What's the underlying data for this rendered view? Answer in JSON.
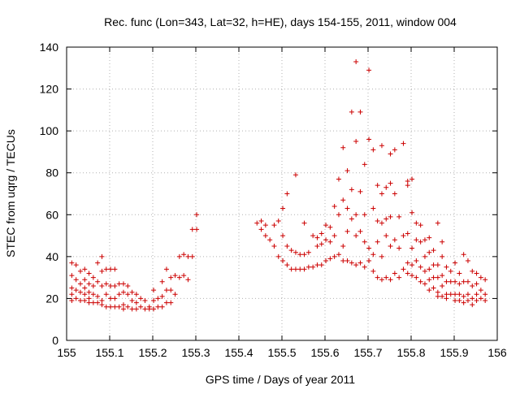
{
  "chart_data": {
    "type": "scatter",
    "title": "Rec. func (Lon=343, Lat=32, h=HE), days 154-155, 2011, window 004",
    "xlabel": "GPS time / Days of year 2011",
    "ylabel": "STEC from uqrg / TECUs",
    "xlim": [
      155,
      156
    ],
    "ylim": [
      0,
      140
    ],
    "xticks": [
      "155",
      "155.1",
      "155.2",
      "155.3",
      "155.4",
      "155.5",
      "155.6",
      "155.7",
      "155.8",
      "155.9",
      "156"
    ],
    "yticks": [
      "0",
      "20",
      "40",
      "60",
      "80",
      "100",
      "120",
      "140"
    ],
    "grid": true,
    "marker": "+",
    "color": "#cc0000",
    "series": [
      {
        "name": "STEC",
        "points": [
          [
            155.012,
            37
          ],
          [
            155.012,
            31
          ],
          [
            155.012,
            25
          ],
          [
            155.012,
            22
          ],
          [
            155.012,
            19
          ],
          [
            155.022,
            36
          ],
          [
            155.022,
            29
          ],
          [
            155.022,
            24
          ],
          [
            155.022,
            20
          ],
          [
            155.032,
            33
          ],
          [
            155.032,
            27
          ],
          [
            155.032,
            23
          ],
          [
            155.032,
            19
          ],
          [
            155.042,
            34
          ],
          [
            155.042,
            29
          ],
          [
            155.042,
            25
          ],
          [
            155.042,
            22
          ],
          [
            155.042,
            19
          ],
          [
            155.052,
            32
          ],
          [
            155.052,
            27
          ],
          [
            155.052,
            23
          ],
          [
            155.052,
            20
          ],
          [
            155.052,
            18
          ],
          [
            155.062,
            30
          ],
          [
            155.062,
            26
          ],
          [
            155.062,
            22
          ],
          [
            155.062,
            18
          ],
          [
            155.072,
            37
          ],
          [
            155.072,
            28
          ],
          [
            155.072,
            21
          ],
          [
            155.072,
            18
          ],
          [
            155.082,
            40
          ],
          [
            155.082,
            33
          ],
          [
            155.082,
            26
          ],
          [
            155.082,
            19
          ],
          [
            155.082,
            17
          ],
          [
            155.092,
            34
          ],
          [
            155.092,
            27
          ],
          [
            155.092,
            22
          ],
          [
            155.092,
            16
          ],
          [
            155.102,
            34
          ],
          [
            155.102,
            26
          ],
          [
            155.102,
            20
          ],
          [
            155.102,
            16
          ],
          [
            155.112,
            34
          ],
          [
            155.112,
            26
          ],
          [
            155.112,
            20
          ],
          [
            155.112,
            16
          ],
          [
            155.122,
            27
          ],
          [
            155.122,
            22
          ],
          [
            155.122,
            16
          ],
          [
            155.132,
            27
          ],
          [
            155.132,
            23
          ],
          [
            155.132,
            17
          ],
          [
            155.132,
            15
          ],
          [
            155.142,
            26
          ],
          [
            155.142,
            22
          ],
          [
            155.142,
            16
          ],
          [
            155.152,
            23
          ],
          [
            155.152,
            19
          ],
          [
            155.152,
            15
          ],
          [
            155.162,
            22
          ],
          [
            155.162,
            18
          ],
          [
            155.162,
            15
          ],
          [
            155.172,
            20
          ],
          [
            155.172,
            16
          ],
          [
            155.182,
            19
          ],
          [
            155.182,
            15
          ],
          [
            155.192,
            16
          ],
          [
            155.192,
            15
          ],
          [
            155.202,
            24
          ],
          [
            155.202,
            19
          ],
          [
            155.202,
            15
          ],
          [
            155.212,
            20
          ],
          [
            155.212,
            16
          ],
          [
            155.222,
            28
          ],
          [
            155.222,
            21
          ],
          [
            155.222,
            16
          ],
          [
            155.232,
            34
          ],
          [
            155.232,
            24
          ],
          [
            155.232,
            18
          ],
          [
            155.242,
            30
          ],
          [
            155.242,
            24
          ],
          [
            155.242,
            18
          ],
          [
            155.252,
            31
          ],
          [
            155.252,
            22
          ],
          [
            155.262,
            40
          ],
          [
            155.262,
            30
          ],
          [
            155.272,
            41
          ],
          [
            155.272,
            31
          ],
          [
            155.282,
            40
          ],
          [
            155.282,
            29
          ],
          [
            155.292,
            53
          ],
          [
            155.292,
            40
          ],
          [
            155.302,
            60
          ],
          [
            155.302,
            53
          ],
          [
            155.442,
            56
          ],
          [
            155.452,
            57
          ],
          [
            155.452,
            53
          ],
          [
            155.462,
            55
          ],
          [
            155.462,
            50
          ],
          [
            155.472,
            48
          ],
          [
            155.482,
            55
          ],
          [
            155.482,
            45
          ],
          [
            155.492,
            57
          ],
          [
            155.492,
            40
          ],
          [
            155.502,
            63
          ],
          [
            155.502,
            50
          ],
          [
            155.502,
            38
          ],
          [
            155.512,
            70
          ],
          [
            155.512,
            45
          ],
          [
            155.512,
            36
          ],
          [
            155.522,
            43
          ],
          [
            155.522,
            34
          ],
          [
            155.532,
            79
          ],
          [
            155.532,
            42
          ],
          [
            155.532,
            34
          ],
          [
            155.542,
            41
          ],
          [
            155.542,
            34
          ],
          [
            155.552,
            56
          ],
          [
            155.552,
            41
          ],
          [
            155.552,
            34
          ],
          [
            155.562,
            42
          ],
          [
            155.562,
            35
          ],
          [
            155.572,
            50
          ],
          [
            155.572,
            35
          ],
          [
            155.582,
            49
          ],
          [
            155.582,
            45
          ],
          [
            155.582,
            36
          ],
          [
            155.592,
            51
          ],
          [
            155.592,
            46
          ],
          [
            155.592,
            36
          ],
          [
            155.602,
            55
          ],
          [
            155.602,
            48
          ],
          [
            155.602,
            38
          ],
          [
            155.612,
            54
          ],
          [
            155.612,
            47
          ],
          [
            155.612,
            39
          ],
          [
            155.622,
            64
          ],
          [
            155.622,
            50
          ],
          [
            155.622,
            40
          ],
          [
            155.632,
            77
          ],
          [
            155.632,
            60
          ],
          [
            155.632,
            41
          ],
          [
            155.642,
            92
          ],
          [
            155.642,
            67
          ],
          [
            155.642,
            45
          ],
          [
            155.642,
            38
          ],
          [
            155.652,
            81
          ],
          [
            155.652,
            63
          ],
          [
            155.652,
            52
          ],
          [
            155.652,
            38
          ],
          [
            155.662,
            109
          ],
          [
            155.662,
            72
          ],
          [
            155.662,
            58
          ],
          [
            155.662,
            37
          ],
          [
            155.672,
            133
          ],
          [
            155.672,
            95
          ],
          [
            155.672,
            60
          ],
          [
            155.672,
            50
          ],
          [
            155.672,
            36
          ],
          [
            155.682,
            109
          ],
          [
            155.682,
            71
          ],
          [
            155.682,
            52
          ],
          [
            155.682,
            37
          ],
          [
            155.692,
            84
          ],
          [
            155.692,
            60
          ],
          [
            155.692,
            47
          ],
          [
            155.692,
            35
          ],
          [
            155.702,
            129
          ],
          [
            155.702,
            96
          ],
          [
            155.702,
            44
          ],
          [
            155.702,
            38
          ],
          [
            155.712,
            91
          ],
          [
            155.712,
            63
          ],
          [
            155.712,
            41
          ],
          [
            155.712,
            33
          ],
          [
            155.722,
            74
          ],
          [
            155.722,
            57
          ],
          [
            155.722,
            47
          ],
          [
            155.722,
            30
          ],
          [
            155.732,
            93
          ],
          [
            155.732,
            70
          ],
          [
            155.732,
            56
          ],
          [
            155.732,
            40
          ],
          [
            155.732,
            29
          ],
          [
            155.742,
            73
          ],
          [
            155.742,
            58
          ],
          [
            155.742,
            50
          ],
          [
            155.742,
            30
          ],
          [
            155.752,
            89
          ],
          [
            155.752,
            75
          ],
          [
            155.752,
            59
          ],
          [
            155.752,
            45
          ],
          [
            155.752,
            29
          ],
          [
            155.762,
            91
          ],
          [
            155.762,
            70
          ],
          [
            155.762,
            48
          ],
          [
            155.762,
            32
          ],
          [
            155.772,
            59
          ],
          [
            155.772,
            44
          ],
          [
            155.772,
            30
          ],
          [
            155.782,
            94
          ],
          [
            155.782,
            50
          ],
          [
            155.782,
            34
          ],
          [
            155.792,
            76
          ],
          [
            155.792,
            74
          ],
          [
            155.792,
            51
          ],
          [
            155.792,
            37
          ],
          [
            155.792,
            32
          ],
          [
            155.802,
            77
          ],
          [
            155.802,
            61
          ],
          [
            155.802,
            44
          ],
          [
            155.802,
            36
          ],
          [
            155.802,
            31
          ],
          [
            155.812,
            56
          ],
          [
            155.812,
            48
          ],
          [
            155.812,
            38
          ],
          [
            155.812,
            30
          ],
          [
            155.822,
            55
          ],
          [
            155.822,
            47
          ],
          [
            155.822,
            35
          ],
          [
            155.822,
            28
          ],
          [
            155.832,
            48
          ],
          [
            155.832,
            40
          ],
          [
            155.832,
            33
          ],
          [
            155.832,
            27
          ],
          [
            155.842,
            49
          ],
          [
            155.842,
            42
          ],
          [
            155.842,
            34
          ],
          [
            155.842,
            29
          ],
          [
            155.842,
            24
          ],
          [
            155.852,
            43
          ],
          [
            155.852,
            36
          ],
          [
            155.852,
            30
          ],
          [
            155.852,
            25
          ],
          [
            155.862,
            56
          ],
          [
            155.862,
            36
          ],
          [
            155.862,
            30
          ],
          [
            155.862,
            23
          ],
          [
            155.862,
            21
          ],
          [
            155.872,
            47
          ],
          [
            155.872,
            40
          ],
          [
            155.872,
            31
          ],
          [
            155.872,
            26
          ],
          [
            155.872,
            21
          ],
          [
            155.882,
            35
          ],
          [
            155.882,
            28
          ],
          [
            155.882,
            22
          ],
          [
            155.882,
            20
          ],
          [
            155.892,
            33
          ],
          [
            155.892,
            28
          ],
          [
            155.892,
            22
          ],
          [
            155.902,
            37
          ],
          [
            155.902,
            28
          ],
          [
            155.902,
            22
          ],
          [
            155.902,
            19
          ],
          [
            155.912,
            32
          ],
          [
            155.912,
            27
          ],
          [
            155.912,
            22
          ],
          [
            155.912,
            19
          ],
          [
            155.922,
            41
          ],
          [
            155.922,
            28
          ],
          [
            155.922,
            21
          ],
          [
            155.922,
            18
          ],
          [
            155.932,
            38
          ],
          [
            155.932,
            28
          ],
          [
            155.932,
            22
          ],
          [
            155.932,
            19
          ],
          [
            155.942,
            33
          ],
          [
            155.942,
            26
          ],
          [
            155.942,
            20
          ],
          [
            155.942,
            17
          ],
          [
            155.952,
            32
          ],
          [
            155.952,
            27
          ],
          [
            155.952,
            22
          ],
          [
            155.952,
            19
          ],
          [
            155.962,
            30
          ],
          [
            155.962,
            24
          ],
          [
            155.962,
            20
          ],
          [
            155.972,
            29
          ],
          [
            155.972,
            22
          ],
          [
            155.972,
            19
          ]
        ]
      }
    ]
  }
}
